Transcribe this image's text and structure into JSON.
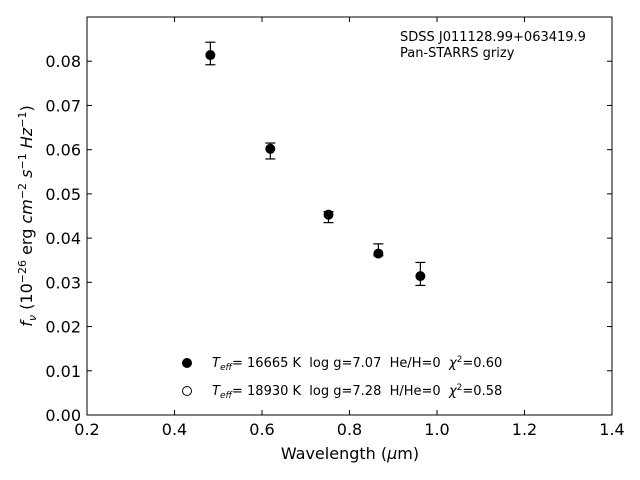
{
  "chart_data": {
    "type": "scatter",
    "xlabel": "Wavelength (μm)",
    "ylabel": "f_ν (10^-26 erg cm^-2 s^-1 Hz^-1)",
    "xlim": [
      0.2,
      1.4
    ],
    "ylim": [
      0.0,
      0.09
    ],
    "xticks": [
      "0.2",
      "0.4",
      "0.6",
      "0.8",
      "1.0",
      "1.2",
      "1.4"
    ],
    "yticks": [
      "0.00",
      "0.01",
      "0.02",
      "0.03",
      "0.04",
      "0.05",
      "0.06",
      "0.07",
      "0.08"
    ],
    "annotation": {
      "line1": "SDSS J011128.99+063419.9",
      "line2": "Pan-STARRS grizy"
    },
    "grid": false,
    "legend_placement": "lower-center",
    "series": [
      {
        "name": "T_eff= 16665 K  log g=7.07  He/H=0  χ²=0.60",
        "marker": "filled-circle",
        "color": "#000000",
        "points": [
          {
            "x": 0.482,
            "y": 0.0814,
            "err_lo": 0.0022,
            "err_hi": 0.0029
          },
          {
            "x": 0.619,
            "y": 0.0602,
            "err_lo": 0.0023,
            "err_hi": 0.0013
          },
          {
            "x": 0.752,
            "y": 0.0453,
            "err_lo": 0.0018,
            "err_hi": 0.0007
          },
          {
            "x": 0.866,
            "y": 0.0365,
            "err_lo": 0.0005,
            "err_hi": 0.0022
          },
          {
            "x": 0.962,
            "y": 0.0314,
            "err_lo": 0.0021,
            "err_hi": 0.0031
          }
        ]
      },
      {
        "name": "T_eff= 18930 K  log g=7.28  H/He=0  χ²=0.58",
        "marker": "open-circle",
        "color": "#000000",
        "points": []
      }
    ],
    "legend": [
      {
        "teff_label": "T",
        "teff_sub": "eff",
        "rest": "= 16665 K  log g=7.07  He/H=0  ",
        "chi": "χ",
        "chi_sup": "2",
        "chi_rest": "=0.60"
      },
      {
        "teff_label": "T",
        "teff_sub": "eff",
        "rest": "= 18930 K  log g=7.28  H/He=0  ",
        "chi": "χ",
        "chi_sup": "2",
        "chi_rest": "=0.58"
      }
    ]
  }
}
